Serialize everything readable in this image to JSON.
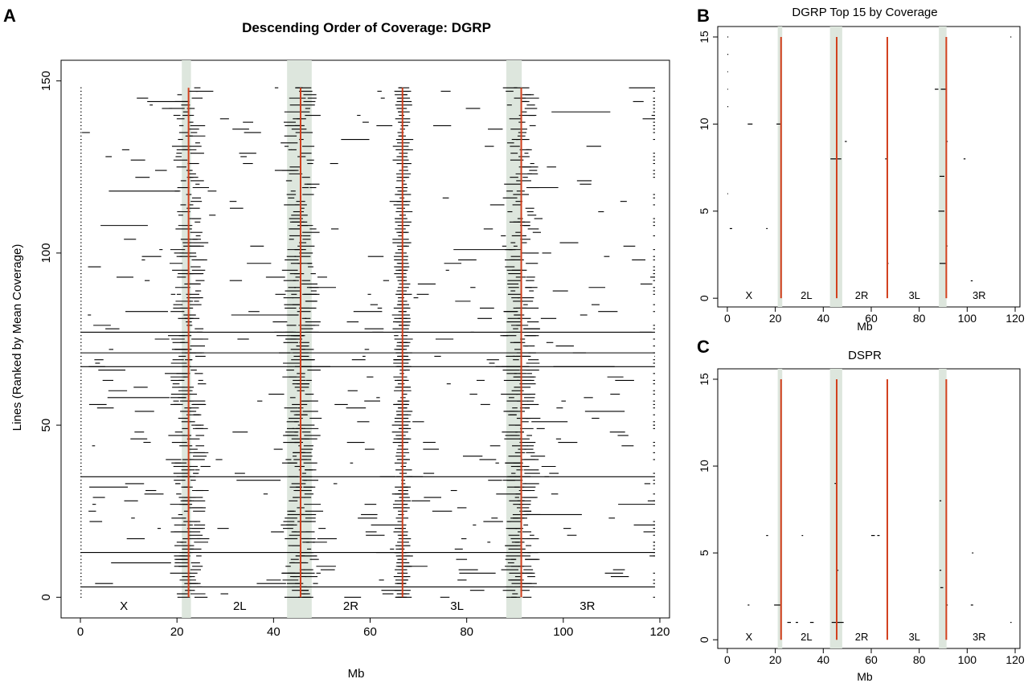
{
  "chart_data": [
    {
      "panel": "A",
      "type": "segment",
      "title": "Descending Order of Coverage: DGRP",
      "xlabel": "Mb",
      "ylabel": "Lines (Ranked by Mean Coverage)",
      "xlim": [
        -4,
        122
      ],
      "ylim": [
        -6,
        156
      ],
      "xticks": [
        "0",
        "20",
        "40",
        "60",
        "80",
        "100",
        "120"
      ],
      "yticks": [
        "0",
        "50",
        "100",
        "150"
      ],
      "arms": [
        {
          "label": "X",
          "x": 9
        },
        {
          "label": "2L",
          "x": 33
        },
        {
          "label": "2R",
          "x": 56
        },
        {
          "label": "3L",
          "x": 78
        },
        {
          "label": "3R",
          "x": 105
        }
      ],
      "centromeres": [
        22.4,
        45.6,
        66.7,
        91.3
      ],
      "shaded": [
        [
          21.0,
          22.9
        ],
        [
          42.8,
          47.9
        ],
        [
          88.2,
          91.4
        ]
      ],
      "vline_ymax": 148,
      "boundaries": [
        0,
        22.4,
        45.6,
        66.7,
        91.3,
        119
      ],
      "n_lines": 148,
      "line_color": "#000000",
      "centromere_color": "#d2401d",
      "shade_color": "#dde6dd",
      "grid": false
    },
    {
      "panel": "B",
      "type": "segment",
      "title": "DGRP Top 15 by Coverage",
      "xlabel": "Mb",
      "xlim": [
        -4,
        122
      ],
      "ylim": [
        -0.5,
        15.6
      ],
      "xticks": [
        "0",
        "20",
        "40",
        "60",
        "80",
        "100",
        "120"
      ],
      "yticks": [
        "0",
        "5",
        "10",
        "15"
      ],
      "arms": [
        {
          "label": "X",
          "x": 9
        },
        {
          "label": "2L",
          "x": 33
        },
        {
          "label": "2R",
          "x": 56
        },
        {
          "label": "3L",
          "x": 78
        },
        {
          "label": "3R",
          "x": 105
        }
      ],
      "centromeres": [
        22.4,
        45.6,
        66.7,
        91.3
      ],
      "shaded": [
        [
          21.0,
          22.9
        ],
        [
          42.8,
          47.9
        ],
        [
          88.2,
          91.4
        ]
      ],
      "vline_ymax": 15,
      "segments": [
        [
          15,
          0,
          0.4
        ],
        [
          14,
          0,
          0.4
        ],
        [
          13,
          0,
          0.3
        ],
        [
          12,
          0,
          0.3
        ],
        [
          11,
          0,
          0.4
        ],
        [
          10,
          8.5,
          10.5
        ],
        [
          10,
          20.5,
          22.4
        ],
        [
          8,
          43.0,
          47.5
        ],
        [
          9,
          49.0,
          49.8
        ],
        [
          8,
          65.8,
          66.5
        ],
        [
          12,
          86.5,
          88.0
        ],
        [
          12,
          89.0,
          91.3
        ],
        [
          9,
          91.4,
          91.9
        ],
        [
          8,
          98.5,
          99.3
        ],
        [
          7,
          88.5,
          90.5
        ],
        [
          5,
          88.0,
          90.5
        ],
        [
          4,
          1.0,
          2.0
        ],
        [
          4,
          16.2,
          16.8
        ],
        [
          2,
          88.5,
          91.0
        ],
        [
          2,
          66.8,
          67.2
        ],
        [
          1,
          101.5,
          102.3
        ],
        [
          6,
          0,
          0.3
        ],
        [
          3,
          91.3,
          91.8
        ],
        [
          15,
          118.0,
          118.4
        ]
      ],
      "grid": false
    },
    {
      "panel": "C",
      "type": "segment",
      "title": "DSPR",
      "xlabel": "Mb",
      "xlim": [
        -4,
        122
      ],
      "ylim": [
        -0.5,
        15.6
      ],
      "xticks": [
        "0",
        "20",
        "40",
        "60",
        "80",
        "100",
        "120"
      ],
      "yticks": [
        "0",
        "5",
        "10",
        "15"
      ],
      "arms": [
        {
          "label": "X",
          "x": 9
        },
        {
          "label": "2L",
          "x": 33
        },
        {
          "label": "2R",
          "x": 56
        },
        {
          "label": "3L",
          "x": 78
        },
        {
          "label": "3R",
          "x": 105
        }
      ],
      "centromeres": [
        22.4,
        45.6,
        66.7,
        91.3
      ],
      "shaded": [
        [
          21.0,
          22.9
        ],
        [
          42.8,
          47.9
        ],
        [
          88.2,
          91.4
        ]
      ],
      "vline_ymax": 15,
      "segments": [
        [
          2,
          8.5,
          9.2
        ],
        [
          6,
          16.2,
          17.0
        ],
        [
          2,
          19.5,
          22.4
        ],
        [
          1,
          25.0,
          26.5
        ],
        [
          1,
          28.5,
          29.5
        ],
        [
          1,
          34.5,
          36.0
        ],
        [
          6,
          31.0,
          31.6
        ],
        [
          9,
          44.7,
          45.3
        ],
        [
          4,
          45.8,
          46.3
        ],
        [
          1,
          43.5,
          48.5
        ],
        [
          6,
          60.0,
          61.5
        ],
        [
          6,
          62.5,
          63.5
        ],
        [
          8,
          88.5,
          89.2
        ],
        [
          4,
          88.5,
          89.2
        ],
        [
          3,
          88.8,
          90.0
        ],
        [
          2,
          91.3,
          91.9
        ],
        [
          2,
          101.5,
          102.5
        ],
        [
          5,
          102.0,
          102.6
        ],
        [
          1,
          118.0,
          118.5
        ]
      ],
      "grid": false
    }
  ]
}
